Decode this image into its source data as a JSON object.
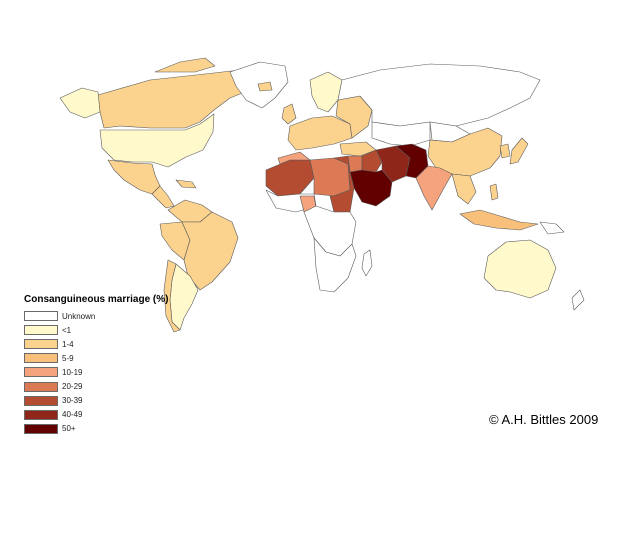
{
  "legend": {
    "title": "Consanguineous marriage (%)",
    "items": [
      {
        "label": "Unknown",
        "color": "#ffffff"
      },
      {
        "label": "<1",
        "color": "#fff9cc"
      },
      {
        "label": "1-4",
        "color": "#fcd38e"
      },
      {
        "label": "5-9",
        "color": "#f9c07b"
      },
      {
        "label": "10-19",
        "color": "#f5a37d"
      },
      {
        "label": "20-29",
        "color": "#dc7a56"
      },
      {
        "label": "30-39",
        "color": "#b34c30"
      },
      {
        "label": "40-49",
        "color": "#8e2619"
      },
      {
        "label": "50+",
        "color": "#620000"
      }
    ]
  },
  "credit": "© A.H. Bittles 2009"
}
